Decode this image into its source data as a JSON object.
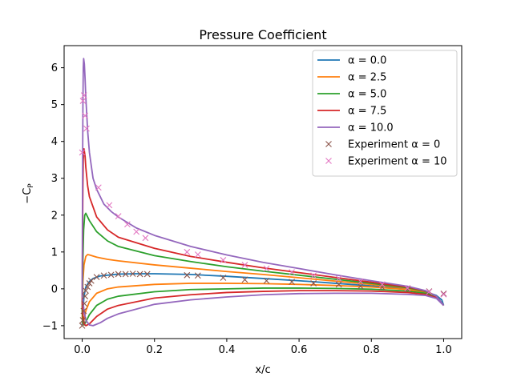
{
  "chart_data": {
    "type": "line",
    "title": "Pressure Coefficient",
    "xlabel": "x/c",
    "ylabel": "−C",
    "ylabel_sub": "P",
    "xlim": [
      -0.05,
      1.05
    ],
    "ylim": [
      -1.35,
      6.6
    ],
    "xticks": [
      0.0,
      0.2,
      0.4,
      0.6,
      0.8,
      1.0
    ],
    "xtick_labels": [
      "0.0",
      "0.2",
      "0.4",
      "0.6",
      "0.8",
      "1.0"
    ],
    "yticks": [
      -1,
      0,
      1,
      2,
      3,
      4,
      5,
      6
    ],
    "ytick_labels": [
      "−1",
      "0",
      "1",
      "2",
      "3",
      "4",
      "5",
      "6"
    ],
    "grid": false,
    "legend_position": "top-right",
    "series": [
      {
        "name": "α = 0.0",
        "color": "#1f77b4",
        "upper": [
          [
            0,
            -1.0
          ],
          [
            0.002,
            -0.6
          ],
          [
            0.005,
            -0.2
          ],
          [
            0.01,
            0.05
          ],
          [
            0.02,
            0.2
          ],
          [
            0.03,
            0.28
          ],
          [
            0.05,
            0.35
          ],
          [
            0.08,
            0.38
          ],
          [
            0.1,
            0.4
          ],
          [
            0.15,
            0.41
          ],
          [
            0.2,
            0.41
          ],
          [
            0.3,
            0.39
          ],
          [
            0.4,
            0.34
          ],
          [
            0.5,
            0.28
          ],
          [
            0.6,
            0.22
          ],
          [
            0.7,
            0.15
          ],
          [
            0.8,
            0.08
          ],
          [
            0.9,
            0.0
          ],
          [
            0.95,
            -0.08
          ],
          [
            0.98,
            -0.18
          ],
          [
            0.995,
            -0.3
          ],
          [
            1.0,
            -0.45
          ]
        ],
        "lower": [
          [
            0,
            -1.0
          ],
          [
            0.002,
            -0.6
          ],
          [
            0.005,
            -0.2
          ],
          [
            0.01,
            0.05
          ],
          [
            0.02,
            0.2
          ],
          [
            0.03,
            0.28
          ],
          [
            0.05,
            0.35
          ],
          [
            0.08,
            0.38
          ],
          [
            0.1,
            0.4
          ],
          [
            0.15,
            0.41
          ],
          [
            0.2,
            0.41
          ],
          [
            0.3,
            0.39
          ],
          [
            0.4,
            0.34
          ],
          [
            0.5,
            0.28
          ],
          [
            0.6,
            0.22
          ],
          [
            0.7,
            0.15
          ],
          [
            0.8,
            0.08
          ],
          [
            0.9,
            0.0
          ],
          [
            0.95,
            -0.08
          ],
          [
            0.98,
            -0.18
          ],
          [
            0.995,
            -0.3
          ],
          [
            1.0,
            -0.45
          ]
        ]
      },
      {
        "name": "α = 2.5",
        "color": "#ff7f0e",
        "upper": [
          [
            0,
            -0.8
          ],
          [
            0.002,
            0.2
          ],
          [
            0.005,
            0.65
          ],
          [
            0.01,
            0.88
          ],
          [
            0.015,
            0.93
          ],
          [
            0.02,
            0.92
          ],
          [
            0.04,
            0.86
          ],
          [
            0.07,
            0.8
          ],
          [
            0.1,
            0.76
          ],
          [
            0.2,
            0.65
          ],
          [
            0.3,
            0.56
          ],
          [
            0.4,
            0.47
          ],
          [
            0.5,
            0.39
          ],
          [
            0.6,
            0.3
          ],
          [
            0.7,
            0.21
          ],
          [
            0.8,
            0.12
          ],
          [
            0.9,
            0.02
          ],
          [
            0.95,
            -0.08
          ],
          [
            0.98,
            -0.2
          ],
          [
            1.0,
            -0.45
          ]
        ],
        "lower": [
          [
            0,
            -0.8
          ],
          [
            0.002,
            -0.95
          ],
          [
            0.005,
            -0.85
          ],
          [
            0.01,
            -0.6
          ],
          [
            0.02,
            -0.35
          ],
          [
            0.04,
            -0.12
          ],
          [
            0.07,
            0.0
          ],
          [
            0.1,
            0.05
          ],
          [
            0.2,
            0.12
          ],
          [
            0.3,
            0.15
          ],
          [
            0.4,
            0.15
          ],
          [
            0.5,
            0.14
          ],
          [
            0.6,
            0.12
          ],
          [
            0.7,
            0.09
          ],
          [
            0.8,
            0.05
          ],
          [
            0.9,
            -0.02
          ],
          [
            0.95,
            -0.1
          ],
          [
            0.98,
            -0.2
          ],
          [
            1.0,
            -0.45
          ]
        ]
      },
      {
        "name": "α = 5.0",
        "color": "#2ca02c",
        "upper": [
          [
            0,
            -0.6
          ],
          [
            0.002,
            0.8
          ],
          [
            0.004,
            1.6
          ],
          [
            0.007,
            2.0
          ],
          [
            0.01,
            2.05
          ],
          [
            0.015,
            1.95
          ],
          [
            0.02,
            1.85
          ],
          [
            0.04,
            1.55
          ],
          [
            0.07,
            1.3
          ],
          [
            0.1,
            1.15
          ],
          [
            0.2,
            0.9
          ],
          [
            0.3,
            0.74
          ],
          [
            0.4,
            0.6
          ],
          [
            0.5,
            0.48
          ],
          [
            0.6,
            0.37
          ],
          [
            0.7,
            0.26
          ],
          [
            0.8,
            0.15
          ],
          [
            0.9,
            0.03
          ],
          [
            0.95,
            -0.07
          ],
          [
            0.98,
            -0.2
          ],
          [
            1.0,
            -0.45
          ]
        ],
        "lower": [
          [
            0,
            -0.6
          ],
          [
            0.002,
            -0.9
          ],
          [
            0.005,
            -0.98
          ],
          [
            0.01,
            -0.9
          ],
          [
            0.02,
            -0.7
          ],
          [
            0.04,
            -0.45
          ],
          [
            0.07,
            -0.28
          ],
          [
            0.1,
            -0.2
          ],
          [
            0.2,
            -0.08
          ],
          [
            0.3,
            -0.02
          ],
          [
            0.4,
            0.0
          ],
          [
            0.5,
            0.02
          ],
          [
            0.6,
            0.02
          ],
          [
            0.7,
            0.01
          ],
          [
            0.8,
            -0.01
          ],
          [
            0.9,
            -0.06
          ],
          [
            0.95,
            -0.12
          ],
          [
            0.98,
            -0.22
          ],
          [
            1.0,
            -0.45
          ]
        ]
      },
      {
        "name": "α = 7.5",
        "color": "#d62728",
        "upper": [
          [
            0,
            -0.4
          ],
          [
            0.001,
            1.5
          ],
          [
            0.002,
            2.8
          ],
          [
            0.003,
            3.5
          ],
          [
            0.005,
            3.8
          ],
          [
            0.008,
            3.6
          ],
          [
            0.01,
            3.3
          ],
          [
            0.015,
            2.8
          ],
          [
            0.02,
            2.5
          ],
          [
            0.04,
            1.95
          ],
          [
            0.07,
            1.6
          ],
          [
            0.1,
            1.4
          ],
          [
            0.2,
            1.1
          ],
          [
            0.3,
            0.88
          ],
          [
            0.4,
            0.72
          ],
          [
            0.5,
            0.57
          ],
          [
            0.6,
            0.44
          ],
          [
            0.7,
            0.31
          ],
          [
            0.8,
            0.18
          ],
          [
            0.9,
            0.05
          ],
          [
            0.95,
            -0.06
          ],
          [
            0.98,
            -0.2
          ],
          [
            1.0,
            -0.45
          ]
        ],
        "lower": [
          [
            0,
            -0.4
          ],
          [
            0.002,
            -0.7
          ],
          [
            0.005,
            -0.95
          ],
          [
            0.01,
            -1.0
          ],
          [
            0.02,
            -0.95
          ],
          [
            0.04,
            -0.75
          ],
          [
            0.07,
            -0.55
          ],
          [
            0.1,
            -0.45
          ],
          [
            0.2,
            -0.25
          ],
          [
            0.3,
            -0.16
          ],
          [
            0.4,
            -0.1
          ],
          [
            0.5,
            -0.07
          ],
          [
            0.6,
            -0.05
          ],
          [
            0.7,
            -0.05
          ],
          [
            0.8,
            -0.06
          ],
          [
            0.9,
            -0.1
          ],
          [
            0.95,
            -0.15
          ],
          [
            0.98,
            -0.24
          ],
          [
            1.0,
            -0.45
          ]
        ]
      },
      {
        "name": "α = 10.0",
        "color": "#9467bd",
        "upper": [
          [
            0,
            -0.2
          ],
          [
            0.001,
            3.0
          ],
          [
            0.002,
            5.0
          ],
          [
            0.003,
            6.0
          ],
          [
            0.004,
            6.25
          ],
          [
            0.006,
            6.1
          ],
          [
            0.008,
            5.7
          ],
          [
            0.01,
            5.2
          ],
          [
            0.015,
            4.3
          ],
          [
            0.02,
            3.7
          ],
          [
            0.03,
            3.0
          ],
          [
            0.04,
            2.7
          ],
          [
            0.06,
            2.3
          ],
          [
            0.08,
            2.1
          ],
          [
            0.1,
            1.95
          ],
          [
            0.15,
            1.65
          ],
          [
            0.2,
            1.45
          ],
          [
            0.3,
            1.15
          ],
          [
            0.4,
            0.92
          ],
          [
            0.5,
            0.72
          ],
          [
            0.6,
            0.55
          ],
          [
            0.7,
            0.38
          ],
          [
            0.8,
            0.22
          ],
          [
            0.9,
            0.07
          ],
          [
            0.95,
            -0.05
          ],
          [
            0.98,
            -0.2
          ],
          [
            1.0,
            -0.45
          ]
        ],
        "lower": [
          [
            0,
            -0.2
          ],
          [
            0.002,
            -0.3
          ],
          [
            0.005,
            -0.6
          ],
          [
            0.01,
            -0.85
          ],
          [
            0.02,
            -0.98
          ],
          [
            0.03,
            -1.0
          ],
          [
            0.05,
            -0.92
          ],
          [
            0.07,
            -0.8
          ],
          [
            0.1,
            -0.68
          ],
          [
            0.2,
            -0.42
          ],
          [
            0.3,
            -0.3
          ],
          [
            0.4,
            -0.22
          ],
          [
            0.5,
            -0.16
          ],
          [
            0.6,
            -0.13
          ],
          [
            0.7,
            -0.12
          ],
          [
            0.8,
            -0.12
          ],
          [
            0.9,
            -0.15
          ],
          [
            0.95,
            -0.18
          ],
          [
            0.98,
            -0.26
          ],
          [
            1.0,
            -0.45
          ]
        ]
      }
    ],
    "scatter": [
      {
        "name": "Experiment α = 0",
        "color": "#8c564b",
        "points": [
          [
            0.0,
            -1.0
          ],
          [
            0.002,
            -0.85
          ],
          [
            0.004,
            -0.6
          ],
          [
            0.006,
            -0.4
          ],
          [
            0.008,
            -0.2
          ],
          [
            0.01,
            -0.05
          ],
          [
            0.015,
            0.05
          ],
          [
            0.02,
            0.15
          ],
          [
            0.025,
            0.22
          ],
          [
            0.04,
            0.32
          ],
          [
            0.06,
            0.36
          ],
          [
            0.08,
            0.38
          ],
          [
            0.1,
            0.4
          ],
          [
            0.12,
            0.4
          ],
          [
            0.14,
            0.41
          ],
          [
            0.16,
            0.4
          ],
          [
            0.18,
            0.4
          ],
          [
            0.29,
            0.37
          ],
          [
            0.32,
            0.36
          ],
          [
            0.39,
            0.3
          ],
          [
            0.45,
            0.25
          ],
          [
            0.51,
            0.22
          ],
          [
            0.58,
            0.19
          ],
          [
            0.64,
            0.15
          ],
          [
            0.71,
            0.12
          ],
          [
            0.77,
            0.07
          ],
          [
            0.83,
            0.04
          ],
          [
            0.9,
            -0.01
          ],
          [
            0.96,
            -0.07
          ],
          [
            1.0,
            -0.13
          ]
        ]
      },
      {
        "name": "Experiment α = 10",
        "color": "#e377c2",
        "points": [
          [
            0.0,
            3.7
          ],
          [
            0.002,
            5.1
          ],
          [
            0.005,
            5.25
          ],
          [
            0.008,
            4.7
          ],
          [
            0.012,
            4.35
          ],
          [
            0.045,
            2.75
          ],
          [
            0.075,
            2.27
          ],
          [
            0.1,
            1.97
          ],
          [
            0.125,
            1.75
          ],
          [
            0.15,
            1.55
          ],
          [
            0.175,
            1.38
          ],
          [
            0.29,
            1.0
          ],
          [
            0.32,
            0.93
          ],
          [
            0.39,
            0.78
          ],
          [
            0.45,
            0.65
          ],
          [
            0.51,
            0.55
          ],
          [
            0.58,
            0.45
          ],
          [
            0.64,
            0.36
          ],
          [
            0.71,
            0.28
          ],
          [
            0.77,
            0.2
          ],
          [
            0.83,
            0.12
          ],
          [
            0.9,
            0.02
          ],
          [
            0.96,
            -0.08
          ],
          [
            1.0,
            -0.15
          ]
        ]
      }
    ]
  }
}
